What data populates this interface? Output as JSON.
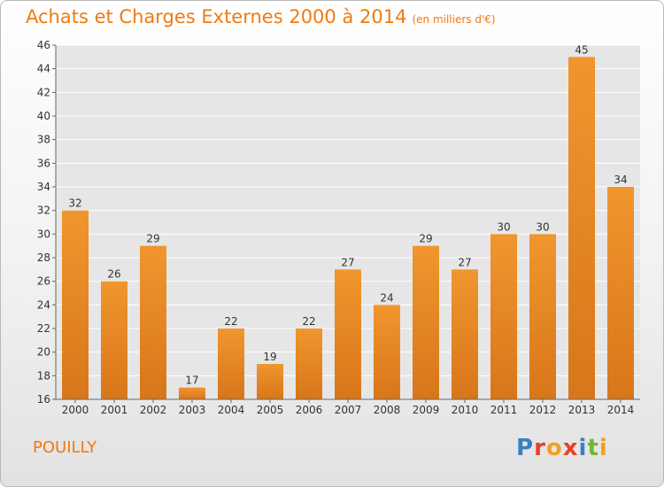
{
  "title": "Achats et Charges Externes 2000 à 2014",
  "subtitle": "(en milliers d'€)",
  "place": "POUILLY",
  "logo": {
    "text": "Proxiti",
    "colors": [
      "#3a7fc4",
      "#e8402a",
      "#f0a020",
      "#e8402a",
      "#3a7fc4",
      "#74b72e",
      "#f0a020"
    ]
  },
  "colors": {
    "bar": "#f0962e",
    "bar_dark": "#d8761a",
    "accent": "#f07a10",
    "plot_bg": "#e6e6e6",
    "grid": "#ffffff"
  },
  "chart_data": {
    "type": "bar",
    "categories": [
      "2000",
      "2001",
      "2002",
      "2003",
      "2004",
      "2005",
      "2006",
      "2007",
      "2008",
      "2009",
      "2010",
      "2011",
      "2012",
      "2013",
      "2014"
    ],
    "values": [
      32,
      26,
      29,
      17,
      22,
      19,
      22,
      27,
      24,
      29,
      27,
      30,
      30,
      45,
      34
    ],
    "ylim": [
      16,
      46
    ],
    "yticks": [
      16,
      18,
      20,
      22,
      24,
      26,
      28,
      30,
      32,
      34,
      36,
      38,
      40,
      42,
      44,
      46
    ],
    "xlabel": "",
    "ylabel": "",
    "grid": true
  }
}
